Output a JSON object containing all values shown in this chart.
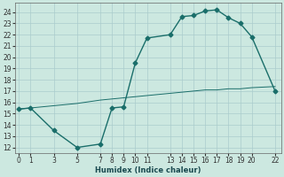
{
  "xlabel": "Humidex (Indice chaleur)",
  "bg_color": "#cce8e0",
  "grid_color": "#aacccc",
  "line_color": "#1a6e6a",
  "xlim": [
    -0.3,
    22.5
  ],
  "ylim": [
    11.5,
    24.8
  ],
  "xticks": [
    0,
    1,
    3,
    5,
    7,
    8,
    9,
    10,
    11,
    13,
    14,
    15,
    16,
    17,
    18,
    19,
    20,
    22
  ],
  "yticks": [
    12,
    13,
    14,
    15,
    16,
    17,
    18,
    19,
    20,
    21,
    22,
    23,
    24
  ],
  "line1_x": [
    0,
    1,
    3,
    5,
    7,
    8,
    9,
    10,
    11,
    13,
    14,
    15,
    16,
    17,
    18,
    19,
    20,
    22
  ],
  "line1_y": [
    15.4,
    15.5,
    15.7,
    15.9,
    16.2,
    16.3,
    16.4,
    16.5,
    16.6,
    16.8,
    16.9,
    17.0,
    17.1,
    17.1,
    17.2,
    17.2,
    17.3,
    17.4
  ],
  "line2_x": [
    0,
    1,
    3,
    5,
    7,
    8,
    9,
    10,
    11,
    13,
    14,
    15,
    16,
    17,
    18,
    19,
    20,
    22
  ],
  "line2_y": [
    15.4,
    15.5,
    13.5,
    12.0,
    12.3,
    15.5,
    15.6,
    19.5,
    21.7,
    22.0,
    23.6,
    23.7,
    24.1,
    24.2,
    23.5,
    23.0,
    21.8,
    17.0
  ],
  "marker": "D",
  "markersize": 2.5,
  "linewidth": 1.0,
  "thin_linewidth": 0.7,
  "tick_fontsize": 5.5,
  "xlabel_fontsize": 6.0
}
